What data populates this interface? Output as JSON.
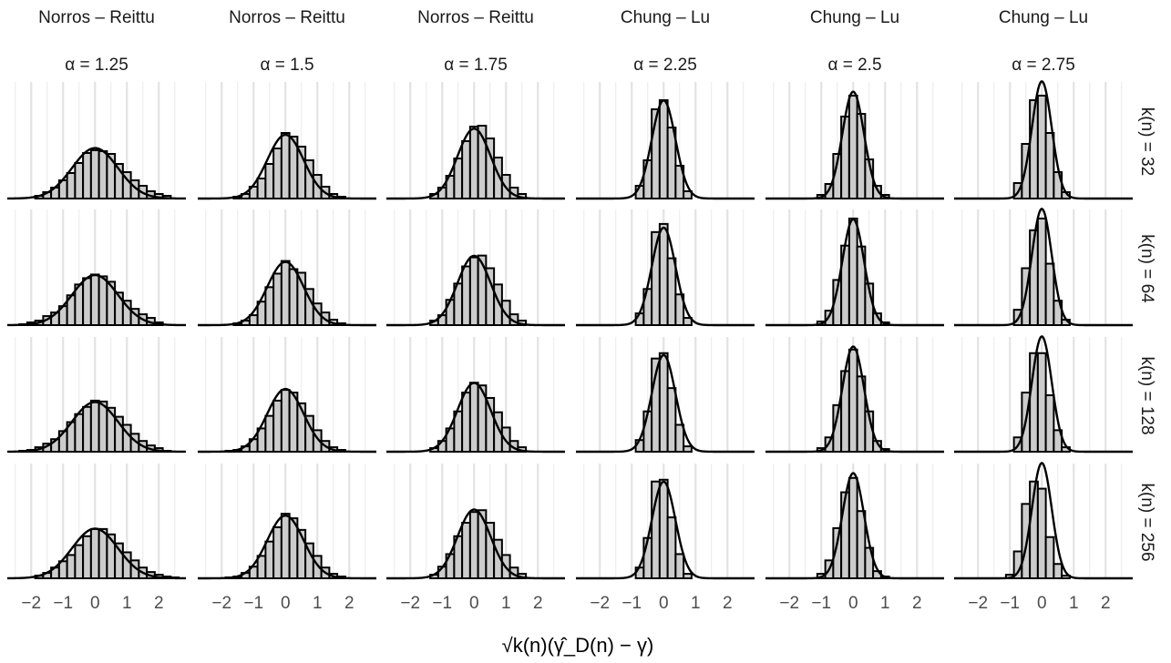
{
  "chart_data": {
    "type": "histogram-grid",
    "x_label": "√k(n)(γ̂_D(n) − γ)",
    "x_ticks": [
      "−2",
      "−1",
      "0",
      "1",
      "2"
    ],
    "x_tick_values": [
      -2,
      -1,
      0,
      1,
      2
    ],
    "xlim": [
      -2.75,
      2.85
    ],
    "bin_width": 0.25,
    "grid": "vertical minor and major gridlines",
    "columns": [
      {
        "method": "Norros – Reittu",
        "alpha_label": "α = 1.25",
        "sd": 0.72
      },
      {
        "method": "Norros – Reittu",
        "alpha_label": "α = 1.5",
        "sd": 0.57
      },
      {
        "method": "Norros – Reittu",
        "alpha_label": "α = 1.75",
        "sd": 0.52
      },
      {
        "method": "Chung – Lu",
        "alpha_label": "α = 2.25",
        "sd": 0.37
      },
      {
        "method": "Chung – Lu",
        "alpha_label": "α = 2.5",
        "sd": 0.34
      },
      {
        "method": "Chung – Lu",
        "alpha_label": "α = 2.75",
        "sd": 0.31
      }
    ],
    "rows": [
      "k(n) = 32",
      "k(n) = 64",
      "k(n) = 128",
      "k(n) = 256"
    ],
    "curve": "normal density, mean 0",
    "histograms": [
      [
        {
          "bins": [
            -1.75,
            -1.5,
            -1.25,
            -1,
            -0.75,
            -0.5,
            -0.25,
            0,
            0.25,
            0.5,
            0.75,
            1,
            1.25,
            1.5,
            1.75,
            2,
            2.25
          ],
          "density": [
            0.03,
            0.07,
            0.12,
            0.2,
            0.28,
            0.39,
            0.5,
            0.53,
            0.52,
            0.49,
            0.38,
            0.29,
            0.2,
            0.14,
            0.08,
            0.05,
            0.03
          ]
        },
        {
          "bins": [
            -2.25,
            -2,
            -1.75,
            -1.5,
            -1.25,
            -1,
            -0.75,
            -0.5,
            -0.25,
            0,
            0.25,
            0.5,
            0.75,
            1,
            1.25,
            1.5,
            1.75,
            2
          ],
          "density": [
            0.01,
            0.03,
            0.05,
            0.1,
            0.14,
            0.21,
            0.33,
            0.45,
            0.52,
            0.56,
            0.54,
            0.48,
            0.36,
            0.27,
            0.18,
            0.12,
            0.08,
            0.03
          ]
        },
        {
          "bins": [
            -2.25,
            -2,
            -1.75,
            -1.5,
            -1.25,
            -1,
            -0.75,
            -0.5,
            -0.25,
            0,
            0.25,
            0.5,
            0.75,
            1,
            1.25,
            1.5,
            1.75,
            2,
            2.25
          ],
          "density": [
            0.01,
            0.02,
            0.05,
            0.09,
            0.14,
            0.23,
            0.33,
            0.42,
            0.5,
            0.57,
            0.56,
            0.49,
            0.39,
            0.3,
            0.2,
            0.12,
            0.07,
            0.04,
            0.01
          ]
        },
        {
          "bins": [
            -1.75,
            -1.5,
            -1.25,
            -1,
            -0.75,
            -0.5,
            -0.25,
            0,
            0.25,
            0.5,
            0.75,
            1,
            1.25,
            1.5,
            1.75,
            2,
            2.25,
            2.5
          ],
          "density": [
            0.03,
            0.06,
            0.12,
            0.19,
            0.26,
            0.37,
            0.47,
            0.55,
            0.55,
            0.49,
            0.39,
            0.29,
            0.2,
            0.12,
            0.07,
            0.04,
            0.02,
            0.01
          ]
        }
      ],
      [
        {
          "bins": [
            -1.5,
            -1.25,
            -1,
            -0.75,
            -0.5,
            -0.25,
            0,
            0.25,
            0.5,
            0.75,
            1,
            1.25,
            1.5,
            1.75
          ],
          "density": [
            0.02,
            0.05,
            0.13,
            0.22,
            0.38,
            0.55,
            0.72,
            0.68,
            0.57,
            0.42,
            0.26,
            0.13,
            0.05,
            0.02
          ]
        },
        {
          "bins": [
            -1.5,
            -1.25,
            -1,
            -0.75,
            -0.5,
            -0.25,
            0,
            0.25,
            0.5,
            0.75,
            1,
            1.25,
            1.5,
            1.75
          ],
          "density": [
            0.02,
            0.05,
            0.11,
            0.26,
            0.42,
            0.57,
            0.71,
            0.62,
            0.58,
            0.4,
            0.24,
            0.14,
            0.06,
            0.02
          ]
        },
        {
          "bins": [
            -1.75,
            -1.5,
            -1.25,
            -1,
            -0.75,
            -0.5,
            -0.25,
            0,
            0.25,
            0.5,
            0.75,
            1,
            1.25,
            1.5,
            1.75
          ],
          "density": [
            0.01,
            0.02,
            0.06,
            0.14,
            0.26,
            0.4,
            0.57,
            0.69,
            0.66,
            0.54,
            0.4,
            0.24,
            0.12,
            0.05,
            0.02
          ]
        },
        {
          "bins": [
            -1.75,
            -1.5,
            -1.25,
            -1,
            -0.75,
            -0.5,
            -0.25,
            0,
            0.25,
            0.5,
            0.75,
            1,
            1.25,
            1.5,
            1.75
          ],
          "density": [
            0.01,
            0.02,
            0.06,
            0.13,
            0.25,
            0.41,
            0.57,
            0.72,
            0.67,
            0.54,
            0.39,
            0.25,
            0.12,
            0.05,
            0.02
          ]
        }
      ],
      [
        {
          "bins": [
            -1.25,
            -1,
            -0.75,
            -0.5,
            -0.25,
            0,
            0.25,
            0.5,
            0.75,
            1,
            1.25,
            1.5
          ],
          "density": [
            0.05,
            0.12,
            0.25,
            0.44,
            0.63,
            0.79,
            0.8,
            0.66,
            0.45,
            0.26,
            0.12,
            0.05
          ]
        },
        {
          "bins": [
            -1.25,
            -1,
            -0.75,
            -0.5,
            -0.25,
            0,
            0.25,
            0.5,
            0.75,
            1,
            1.25,
            1.5
          ],
          "density": [
            0.05,
            0.11,
            0.28,
            0.46,
            0.65,
            0.75,
            0.77,
            0.63,
            0.45,
            0.27,
            0.12,
            0.05
          ]
        },
        {
          "bins": [
            -1.25,
            -1,
            -0.75,
            -0.5,
            -0.25,
            0,
            0.25,
            0.5,
            0.75,
            1,
            1.25,
            1.5
          ],
          "density": [
            0.04,
            0.12,
            0.26,
            0.45,
            0.66,
            0.77,
            0.74,
            0.6,
            0.44,
            0.27,
            0.12,
            0.05
          ]
        },
        {
          "bins": [
            -1.25,
            -1,
            -0.75,
            -0.5,
            -0.25,
            0,
            0.25,
            0.5,
            0.75,
            1,
            1.25,
            1.5
          ],
          "density": [
            0.04,
            0.13,
            0.27,
            0.47,
            0.62,
            0.74,
            0.76,
            0.62,
            0.43,
            0.26,
            0.12,
            0.05
          ]
        }
      ],
      [
        {
          "bins": [
            -0.75,
            -0.5,
            -0.25,
            0,
            0.25,
            0.5,
            0.75
          ],
          "density": [
            0.14,
            0.42,
            0.98,
            1.08,
            0.78,
            0.36,
            0.08
          ]
        },
        {
          "bins": [
            -0.75,
            -0.5,
            -0.25,
            0,
            0.25,
            0.5,
            0.75
          ],
          "density": [
            0.13,
            0.4,
            1.03,
            1.12,
            0.74,
            0.34,
            0.08
          ]
        },
        {
          "bins": [
            -0.75,
            -0.5,
            -0.25,
            0,
            0.25,
            0.5,
            0.75
          ],
          "density": [
            0.13,
            0.45,
            1.04,
            1.1,
            0.71,
            0.3,
            0.06
          ]
        },
        {
          "bins": [
            -0.75,
            -0.5,
            -0.25,
            0,
            0.25,
            0.5,
            0.75
          ],
          "density": [
            0.12,
            0.45,
            1.08,
            1.1,
            0.68,
            0.27,
            0.05
          ]
        }
      ],
      [
        {
          "bins": [
            -1,
            -0.75,
            -0.5,
            -0.25,
            0,
            0.25,
            0.5,
            0.75,
            1
          ],
          "density": [
            0.04,
            0.16,
            0.49,
            0.9,
            1.13,
            0.93,
            0.43,
            0.14,
            0.04
          ]
        },
        {
          "bins": [
            -1,
            -0.75,
            -0.5,
            -0.25,
            0,
            0.25,
            0.5,
            0.75,
            1
          ],
          "density": [
            0.04,
            0.16,
            0.5,
            0.88,
            1.18,
            0.87,
            0.46,
            0.13,
            0.03
          ]
        },
        {
          "bins": [
            -1,
            -0.75,
            -0.5,
            -0.25,
            0,
            0.25,
            0.5,
            0.75,
            1
          ],
          "density": [
            0.04,
            0.16,
            0.52,
            0.9,
            1.14,
            0.84,
            0.45,
            0.12,
            0.03
          ]
        },
        {
          "bins": [
            -1,
            -0.75,
            -0.5,
            -0.25,
            0,
            0.25,
            0.5,
            0.75,
            1
          ],
          "density": [
            0.05,
            0.2,
            0.56,
            0.96,
            1.12,
            0.75,
            0.34,
            0.08,
            0.02
          ]
        }
      ],
      [
        {
          "bins": [
            -0.75,
            -0.5,
            -0.25,
            0,
            0.25,
            0.5,
            0.75
          ],
          "density": [
            0.17,
            0.6,
            1.08,
            1.13,
            0.72,
            0.29,
            0.07
          ]
        },
        {
          "bins": [
            -0.75,
            -0.5,
            -0.25,
            0,
            0.25,
            0.5,
            0.75
          ],
          "density": [
            0.17,
            0.63,
            1.05,
            1.18,
            0.68,
            0.27,
            0.06
          ]
        },
        {
          "bins": [
            -0.75,
            -0.5,
            -0.25,
            0,
            0.25,
            0.5,
            0.75
          ],
          "density": [
            0.16,
            0.66,
            1.1,
            1.1,
            0.63,
            0.24,
            0.05
          ]
        },
        {
          "bins": [
            -1,
            -0.75,
            -0.5,
            -0.25,
            0,
            0.25,
            0.5,
            0.75
          ],
          "density": [
            0.04,
            0.3,
            0.83,
            1.08,
            1.0,
            0.46,
            0.16,
            0.03
          ]
        }
      ]
    ]
  }
}
